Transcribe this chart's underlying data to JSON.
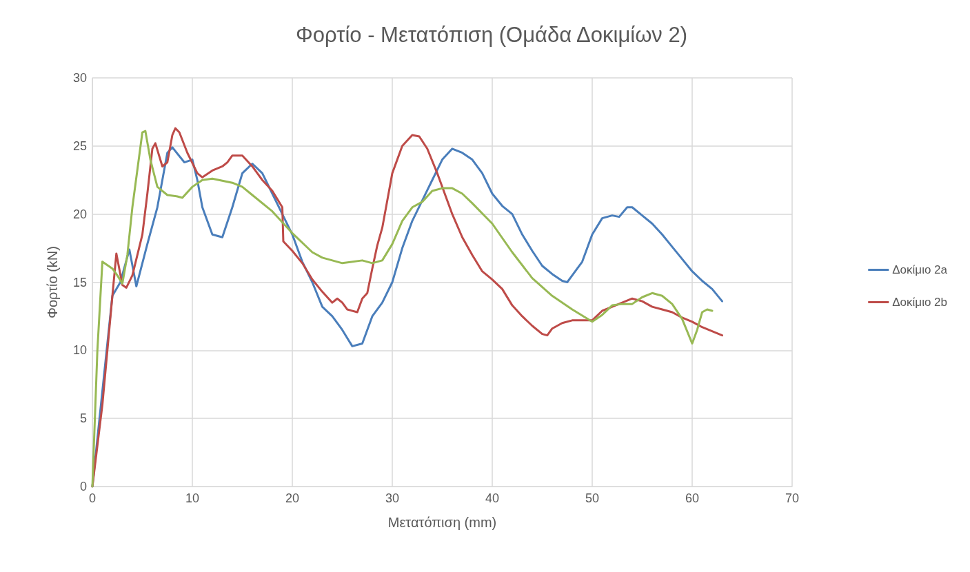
{
  "chart_data": {
    "type": "line",
    "title": "Φορτίο - Μετατόπιση (Ομάδα Δοκιμίων 2)",
    "xlabel": "Μετατόπιση (mm)",
    "ylabel": "Φορτίο (kN)",
    "xlim": [
      0,
      70
    ],
    "xticks": [
      0,
      10,
      20,
      30,
      40,
      50,
      60,
      70
    ],
    "ylim": [
      0,
      30
    ],
    "yticks": [
      0,
      5,
      10,
      15,
      20,
      25,
      30
    ],
    "grid": true,
    "legend": "right",
    "marker": "none",
    "line_style": "solid",
    "series": [
      {
        "name": "Δοκίμιο 2a",
        "color": "#4a7ebb",
        "x": [
          0,
          2,
          2.8,
          3.7,
          4.4,
          5.5,
          6.5,
          7.5,
          8,
          9.2,
          10,
          10.5,
          11,
          12,
          13,
          14,
          15,
          16,
          17,
          18,
          19,
          20,
          21,
          22,
          23,
          24,
          25,
          26,
          27,
          28,
          29,
          30,
          31,
          32,
          33,
          34,
          35,
          36,
          37,
          38,
          39,
          40,
          41,
          42,
          43,
          44,
          45,
          46,
          47,
          47.5,
          48,
          49,
          50,
          51,
          52,
          52.7,
          53.5,
          54,
          55,
          56,
          57,
          58,
          59,
          60,
          61,
          62,
          63
        ],
        "values": [
          0,
          14,
          15,
          17.4,
          14.7,
          17.8,
          20.5,
          24.5,
          24.9,
          23.8,
          24,
          22.5,
          20.5,
          18.5,
          18.3,
          20.5,
          23,
          23.7,
          23,
          21.5,
          20,
          18.5,
          16.5,
          15,
          13.2,
          12.5,
          11.5,
          10.3,
          10.5,
          12.5,
          13.5,
          15,
          17.5,
          19.5,
          21,
          22.5,
          24,
          24.8,
          24.5,
          24,
          23,
          21.5,
          20.6,
          20,
          18.5,
          17.3,
          16.2,
          15.6,
          15.1,
          15,
          15.5,
          16.5,
          18.5,
          19.7,
          19.9,
          19.8,
          20.5,
          20.5,
          19.9,
          19.3,
          18.5,
          17.6,
          16.7,
          15.8,
          15.1,
          14.5,
          13.6
        ]
      },
      {
        "name": "Δοκίμιο 2b",
        "color": "#be4b48",
        "x": [
          0,
          1,
          2,
          2.4,
          3,
          3.4,
          4,
          5,
          5.5,
          6,
          6.3,
          7,
          7.5,
          8,
          8.3,
          8.7,
          9.5,
          10.5,
          11,
          12,
          13,
          13.5,
          14,
          15,
          16,
          17,
          18,
          19,
          19.1,
          20,
          21,
          22,
          23,
          24,
          24.5,
          25,
          25.5,
          26.5,
          27,
          27.5,
          28,
          28.5,
          29,
          29.5,
          30,
          31,
          32,
          32.7,
          33.5,
          34.5,
          36,
          37,
          38,
          39,
          40,
          41,
          42,
          43,
          44,
          45,
          45.5,
          46,
          47,
          48,
          50,
          51,
          52,
          53,
          54,
          55,
          56,
          57,
          58,
          59,
          60,
          61,
          62,
          63
        ],
        "values": [
          0,
          6,
          14,
          17.1,
          14.8,
          14.6,
          15.5,
          18.5,
          21.5,
          24.8,
          25.2,
          23.5,
          23.8,
          25.8,
          26.3,
          26,
          24.5,
          23,
          22.7,
          23.2,
          23.5,
          23.8,
          24.3,
          24.3,
          23.5,
          22.5,
          21.7,
          20.5,
          18,
          17.3,
          16.4,
          15.2,
          14.3,
          13.5,
          13.8,
          13.5,
          13,
          12.8,
          13.8,
          14.2,
          16,
          17.7,
          19,
          21,
          23,
          25,
          25.8,
          25.7,
          24.8,
          23,
          20,
          18.3,
          17,
          15.8,
          15.2,
          14.5,
          13.3,
          12.5,
          11.8,
          11.2,
          11.1,
          11.6,
          12,
          12.2,
          12.2,
          12.9,
          13.2,
          13.5,
          13.8,
          13.6,
          13.2,
          13,
          12.8,
          12.4,
          12.1,
          11.7,
          11.4,
          11.1
        ]
      },
      {
        "color": "#98b954",
        "x": [
          0,
          0.5,
          1,
          2,
          2.5,
          3,
          3.5,
          4,
          5,
          5.3,
          5.8,
          6.5,
          7.5,
          8.5,
          9,
          10,
          11,
          12,
          14,
          15,
          16,
          18,
          20,
          22,
          23,
          25,
          27,
          28,
          29,
          30,
          31,
          32,
          33,
          34,
          35,
          36,
          37,
          38,
          40,
          42,
          44,
          46,
          48,
          50,
          51,
          52,
          53,
          54,
          55,
          56,
          57,
          58,
          59,
          60,
          60.5,
          61,
          61.5,
          62
        ],
        "values": [
          0,
          10,
          16.5,
          16,
          15.5,
          14.9,
          17,
          20.5,
          26,
          26.1,
          24,
          22,
          21.4,
          21.3,
          21.2,
          22,
          22.5,
          22.6,
          22.3,
          22,
          21.4,
          20.2,
          18.6,
          17.2,
          16.8,
          16.4,
          16.6,
          16.4,
          16.6,
          17.8,
          19.5,
          20.5,
          20.9,
          21.7,
          21.9,
          21.9,
          21.5,
          20.8,
          19.3,
          17.2,
          15.3,
          14,
          13,
          12.1,
          12.6,
          13.3,
          13.4,
          13.4,
          13.9,
          14.2,
          14,
          13.4,
          12.3,
          10.5,
          11.5,
          12.8,
          13,
          12.9
        ]
      }
    ]
  }
}
